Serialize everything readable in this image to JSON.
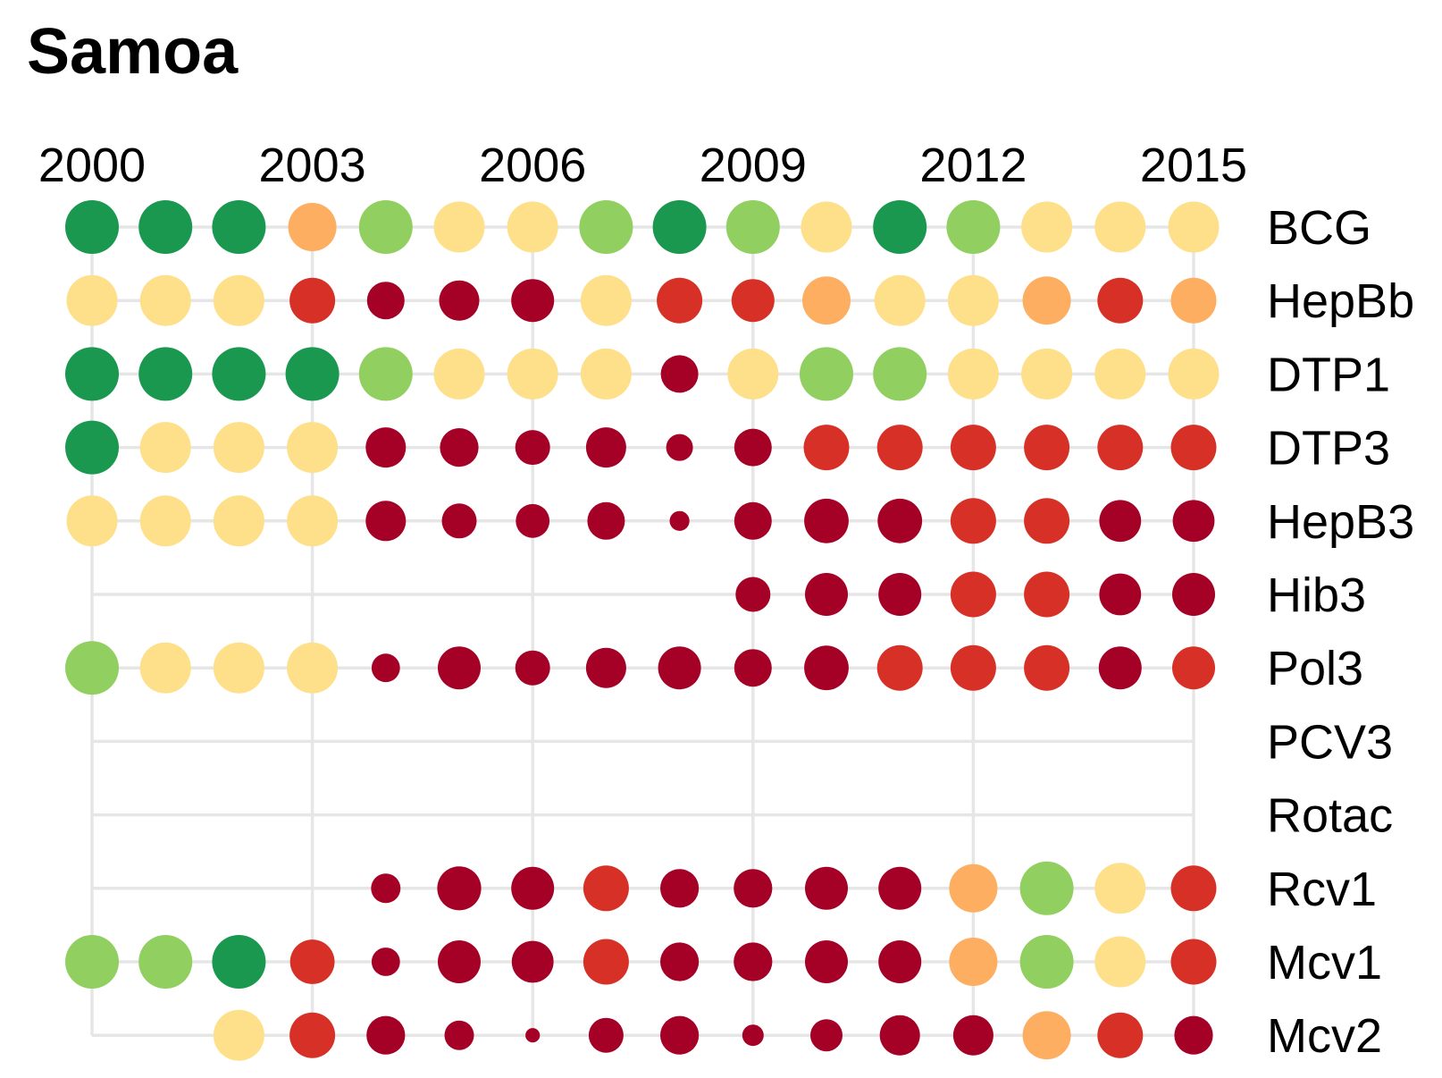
{
  "chart_data": {
    "type": "scatter",
    "title": "Samoa",
    "x_ticks": [
      "2000",
      "2003",
      "2006",
      "2009",
      "2012",
      "2015"
    ],
    "years": [
      2000,
      2001,
      2002,
      2003,
      2004,
      2005,
      2006,
      2007,
      2008,
      2009,
      2010,
      2011,
      2012,
      2013,
      2014,
      2015
    ],
    "levels": {
      "1": "#1a9850",
      "2": "#91cf60",
      "3": "#fee08b",
      "4": "#fdae61",
      "5": "#d73027",
      "6": "#a50026"
    },
    "series": [
      {
        "name": "BCG",
        "level": [
          1,
          1,
          1,
          4,
          2,
          3,
          3,
          2,
          1,
          2,
          3,
          1,
          2,
          3,
          3,
          3
        ],
        "size": [
          1,
          1,
          1,
          0.9,
          1,
          0.95,
          0.95,
          1,
          1,
          1,
          0.95,
          1,
          1,
          0.95,
          0.95,
          0.95
        ]
      },
      {
        "name": "HepBb",
        "level": [
          3,
          3,
          3,
          5,
          6,
          6,
          6,
          3,
          5,
          5,
          4,
          3,
          3,
          4,
          5,
          4
        ],
        "size": [
          0.95,
          0.95,
          0.95,
          0.85,
          0.7,
          0.75,
          0.8,
          0.95,
          0.85,
          0.8,
          0.9,
          0.95,
          0.95,
          0.9,
          0.85,
          0.85
        ]
      },
      {
        "name": "DTP1",
        "level": [
          1,
          1,
          1,
          1,
          2,
          3,
          3,
          3,
          6,
          3,
          2,
          2,
          3,
          3,
          3,
          3
        ],
        "size": [
          1,
          1,
          1,
          1,
          1,
          0.95,
          0.95,
          0.95,
          0.7,
          0.95,
          1,
          1,
          0.95,
          0.95,
          0.95,
          0.95
        ]
      },
      {
        "name": "DTP3",
        "level": [
          1,
          3,
          3,
          3,
          6,
          6,
          6,
          6,
          6,
          6,
          5,
          5,
          5,
          5,
          5,
          5
        ],
        "size": [
          1,
          0.95,
          0.95,
          0.95,
          0.75,
          0.72,
          0.65,
          0.75,
          0.5,
          0.7,
          0.85,
          0.85,
          0.85,
          0.85,
          0.85,
          0.85
        ]
      },
      {
        "name": "HepB3",
        "level": [
          3,
          3,
          3,
          3,
          6,
          6,
          6,
          6,
          6,
          6,
          6,
          6,
          5,
          5,
          6,
          6
        ],
        "size": [
          0.95,
          0.95,
          0.95,
          0.95,
          0.75,
          0.65,
          0.63,
          0.7,
          0.37,
          0.7,
          0.83,
          0.83,
          0.85,
          0.85,
          0.78,
          0.78
        ]
      },
      {
        "name": "Hib3",
        "level": [
          null,
          null,
          null,
          null,
          null,
          null,
          null,
          null,
          null,
          6,
          6,
          6,
          5,
          5,
          6,
          6
        ],
        "size": [
          0,
          0,
          0,
          0,
          0,
          0,
          0,
          0,
          0,
          0.65,
          0.8,
          0.8,
          0.85,
          0.85,
          0.78,
          0.8
        ]
      },
      {
        "name": "Pol3",
        "level": [
          2,
          3,
          3,
          3,
          6,
          6,
          6,
          6,
          6,
          6,
          6,
          5,
          5,
          5,
          6,
          5
        ],
        "size": [
          1,
          0.95,
          0.95,
          0.95,
          0.53,
          0.8,
          0.65,
          0.75,
          0.8,
          0.7,
          0.83,
          0.85,
          0.85,
          0.85,
          0.8,
          0.8
        ]
      },
      {
        "name": "PCV3",
        "level": [
          null,
          null,
          null,
          null,
          null,
          null,
          null,
          null,
          null,
          null,
          null,
          null,
          null,
          null,
          null,
          null
        ],
        "size": [
          0,
          0,
          0,
          0,
          0,
          0,
          0,
          0,
          0,
          0,
          0,
          0,
          0,
          0,
          0,
          0
        ]
      },
      {
        "name": "Rotac",
        "level": [
          null,
          null,
          null,
          null,
          null,
          null,
          null,
          null,
          null,
          null,
          null,
          null,
          null,
          null,
          null,
          null
        ],
        "size": [
          0,
          0,
          0,
          0,
          0,
          0,
          0,
          0,
          0,
          0,
          0,
          0,
          0,
          0,
          0,
          0
        ]
      },
      {
        "name": "Rcv1",
        "level": [
          null,
          null,
          null,
          null,
          6,
          6,
          6,
          5,
          6,
          6,
          6,
          6,
          4,
          2,
          3,
          5
        ],
        "size": [
          0,
          0,
          0,
          0,
          0.55,
          0.82,
          0.8,
          0.85,
          0.72,
          0.72,
          0.8,
          0.8,
          0.9,
          1,
          0.95,
          0.85
        ]
      },
      {
        "name": "Mcv1",
        "level": [
          2,
          2,
          1,
          5,
          6,
          6,
          6,
          5,
          6,
          6,
          6,
          6,
          4,
          2,
          3,
          5
        ],
        "size": [
          1,
          1,
          1,
          0.83,
          0.53,
          0.8,
          0.78,
          0.85,
          0.72,
          0.72,
          0.8,
          0.8,
          0.9,
          1,
          0.95,
          0.85
        ]
      },
      {
        "name": "Mcv2",
        "level": [
          null,
          null,
          3,
          5,
          6,
          6,
          6,
          6,
          6,
          6,
          6,
          6,
          6,
          4,
          5,
          6
        ],
        "size": [
          0,
          0,
          0.95,
          0.85,
          0.72,
          0.55,
          0.27,
          0.65,
          0.72,
          0.4,
          0.6,
          0.75,
          0.75,
          0.9,
          0.85,
          0.72
        ]
      }
    ]
  }
}
